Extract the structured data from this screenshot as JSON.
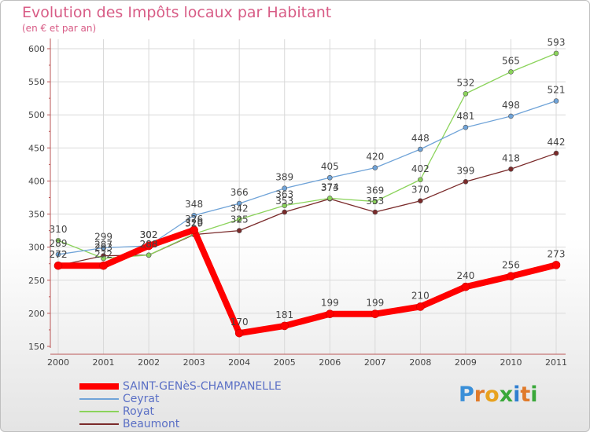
{
  "chart_data": {
    "type": "line",
    "title": "Evolution des Impôts locaux par Habitant",
    "subtitle": "(en € et par an)",
    "xlabel": "",
    "ylabel": "",
    "ylim": [
      150,
      600
    ],
    "yticks": [
      150,
      200,
      250,
      300,
      350,
      400,
      450,
      500,
      550,
      600
    ],
    "categories": [
      "2000",
      "2001",
      "2002",
      "2003",
      "2004",
      "2005",
      "2006",
      "2007",
      "2008",
      "2009",
      "2010",
      "2011"
    ],
    "series": [
      {
        "name": "SAINT-GENèS-CHAMPANELLE",
        "color": "#ff0000",
        "values": [
          272,
          272,
          302,
          326,
          170,
          181,
          199,
          199,
          210,
          240,
          256,
          273
        ]
      },
      {
        "name": "Ceyrat",
        "color": "#6fa3d8",
        "values": [
          289,
          299,
          302,
          348,
          366,
          389,
          405,
          420,
          448,
          481,
          498,
          521
        ]
      },
      {
        "name": "Royat",
        "color": "#8bd35b",
        "values": [
          310,
          283,
          288,
          320,
          342,
          363,
          374,
          369,
          402,
          532,
          565,
          593
        ]
      },
      {
        "name": "Beaumont",
        "color": "#7a2a2a",
        "values": [
          272,
          287,
          288,
          319,
          325,
          353,
          373,
          353,
          370,
          399,
          418,
          442
        ]
      }
    ],
    "legend_position": "bottom-left",
    "grid": true
  },
  "logo": {
    "text": "Proxiti"
  }
}
